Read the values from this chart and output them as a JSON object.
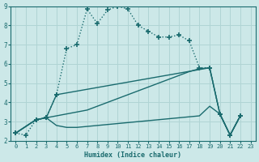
{
  "xlabel": "Humidex (Indice chaleur)",
  "xlim": [
    -0.5,
    23.5
  ],
  "ylim": [
    2,
    9
  ],
  "yticks": [
    2,
    3,
    4,
    5,
    6,
    7,
    8,
    9
  ],
  "xticks": [
    0,
    1,
    2,
    3,
    4,
    5,
    6,
    7,
    8,
    9,
    10,
    11,
    12,
    13,
    14,
    15,
    16,
    17,
    18,
    19,
    20,
    21,
    22,
    23
  ],
  "bg_color": "#cce8e8",
  "grid_color": "#b0d4d4",
  "line_color": "#1a6b6e",
  "lines": [
    {
      "x": [
        0,
        1,
        2,
        3,
        4,
        5,
        6,
        7,
        8,
        9,
        10,
        11,
        12,
        13,
        14,
        15,
        16,
        17,
        18,
        19,
        20,
        21,
        22
      ],
      "y": [
        2.4,
        2.3,
        3.1,
        3.2,
        4.4,
        6.8,
        7.0,
        8.85,
        8.1,
        8.8,
        9.0,
        8.85,
        8.0,
        7.7,
        7.4,
        7.4,
        7.5,
        7.2,
        5.8,
        5.8,
        3.4,
        2.3,
        3.3
      ],
      "style": ":",
      "marker": "+",
      "markersize": 4,
      "markeredgewidth": 1.2,
      "linewidth": 1.0
    },
    {
      "x": [
        0,
        2,
        3,
        4,
        19,
        20,
        21,
        22
      ],
      "y": [
        2.4,
        3.1,
        3.2,
        4.4,
        5.8,
        3.4,
        2.3,
        3.3
      ],
      "style": "-",
      "marker": "+",
      "markersize": 4,
      "markeredgewidth": 1.2,
      "linewidth": 1.0
    },
    {
      "x": [
        0,
        2,
        3,
        4,
        5,
        6,
        7,
        8,
        9,
        10,
        11,
        12,
        13,
        14,
        15,
        16,
        17,
        18,
        19,
        20,
        21,
        22
      ],
      "y": [
        2.4,
        3.1,
        3.2,
        3.3,
        3.4,
        3.5,
        3.6,
        3.8,
        4.0,
        4.2,
        4.4,
        4.6,
        4.8,
        5.0,
        5.2,
        5.4,
        5.6,
        5.75,
        5.8,
        3.4,
        2.3,
        3.3
      ],
      "style": "-",
      "marker": null,
      "markersize": 0,
      "markeredgewidth": 0,
      "linewidth": 1.0
    },
    {
      "x": [
        0,
        2,
        3,
        4,
        5,
        6,
        7,
        8,
        9,
        10,
        11,
        12,
        13,
        14,
        15,
        16,
        17,
        18,
        19,
        20,
        21,
        22
      ],
      "y": [
        2.4,
        3.1,
        3.2,
        2.8,
        2.7,
        2.7,
        2.75,
        2.8,
        2.85,
        2.9,
        2.95,
        3.0,
        3.05,
        3.1,
        3.15,
        3.2,
        3.25,
        3.3,
        3.8,
        3.4,
        2.3,
        3.3
      ],
      "style": "-",
      "marker": null,
      "markersize": 0,
      "markeredgewidth": 0,
      "linewidth": 1.0
    }
  ]
}
